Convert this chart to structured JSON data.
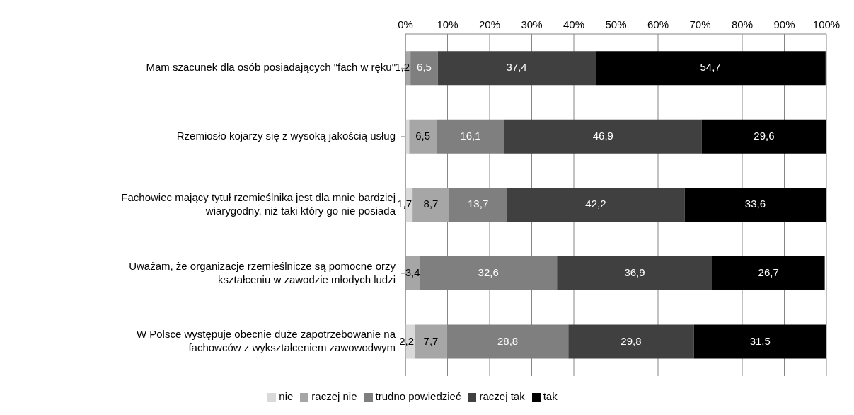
{
  "chart_data": {
    "type": "bar",
    "orientation": "horizontal",
    "stacked": true,
    "categories": [
      "Mam szacunek dla osób posiadających \"fach w ręku\"",
      "Rzemiosło kojarzy się z wysoką jakością usług",
      "Fachowiec mający tytuł rzemieślnika jest dla mnie bardziej wiarygodny, niż taki który go nie posiada",
      "Uważam, że organizacje rzemieślnicze są pomocne orzy kształceniu w zawodzie młodych ludzi",
      "W Polsce występuje obecnie duże zapotrzebowanie na fachowców z wykształceniem zawowodwym"
    ],
    "series": [
      {
        "name": "nie",
        "color": "#d9d9d9",
        "values": [
          null,
          0.9,
          1.7,
          null,
          2.2
        ],
        "value_labels": [
          null,
          null,
          "1,7",
          null,
          "2,2"
        ]
      },
      {
        "name": "raczej nie",
        "color": "#a6a6a6",
        "values": [
          1.2,
          6.5,
          8.7,
          3.4,
          7.7
        ],
        "value_labels": [
          "1,2",
          "6,5",
          "8,7",
          "3,4",
          "7,7"
        ]
      },
      {
        "name": "trudno powiedzieć",
        "color": "#7f7f7f",
        "values": [
          6.5,
          16.1,
          13.7,
          32.6,
          28.8
        ],
        "value_labels": [
          "6,5",
          "16,1",
          "13,7",
          "32,6",
          "28,8"
        ]
      },
      {
        "name": "raczej tak",
        "color": "#404040",
        "values": [
          37.4,
          46.9,
          42.2,
          36.9,
          29.8
        ],
        "value_labels": [
          "37,4",
          "46,9",
          "42,2",
          "36,9",
          "29,8"
        ]
      },
      {
        "name": "tak",
        "color": "#000000",
        "values": [
          54.7,
          29.6,
          33.6,
          26.7,
          31.5
        ],
        "value_labels": [
          "54,7",
          "29,6",
          "33,6",
          "26,7",
          "31,5"
        ]
      }
    ],
    "xlim": [
      0,
      100
    ],
    "xticks": [
      {
        "value": 0,
        "label": "0%"
      },
      {
        "value": 10,
        "label": "10%"
      },
      {
        "value": 20,
        "label": "20%"
      },
      {
        "value": 30,
        "label": "30%"
      },
      {
        "value": 40,
        "label": "40%"
      },
      {
        "value": 50,
        "label": "50%"
      },
      {
        "value": 60,
        "label": "60%"
      },
      {
        "value": 70,
        "label": "70%"
      },
      {
        "value": 80,
        "label": "80%"
      },
      {
        "value": 90,
        "label": "90%"
      },
      {
        "value": 100,
        "label": "100%"
      }
    ],
    "grid": "x",
    "legend": "bottom"
  }
}
